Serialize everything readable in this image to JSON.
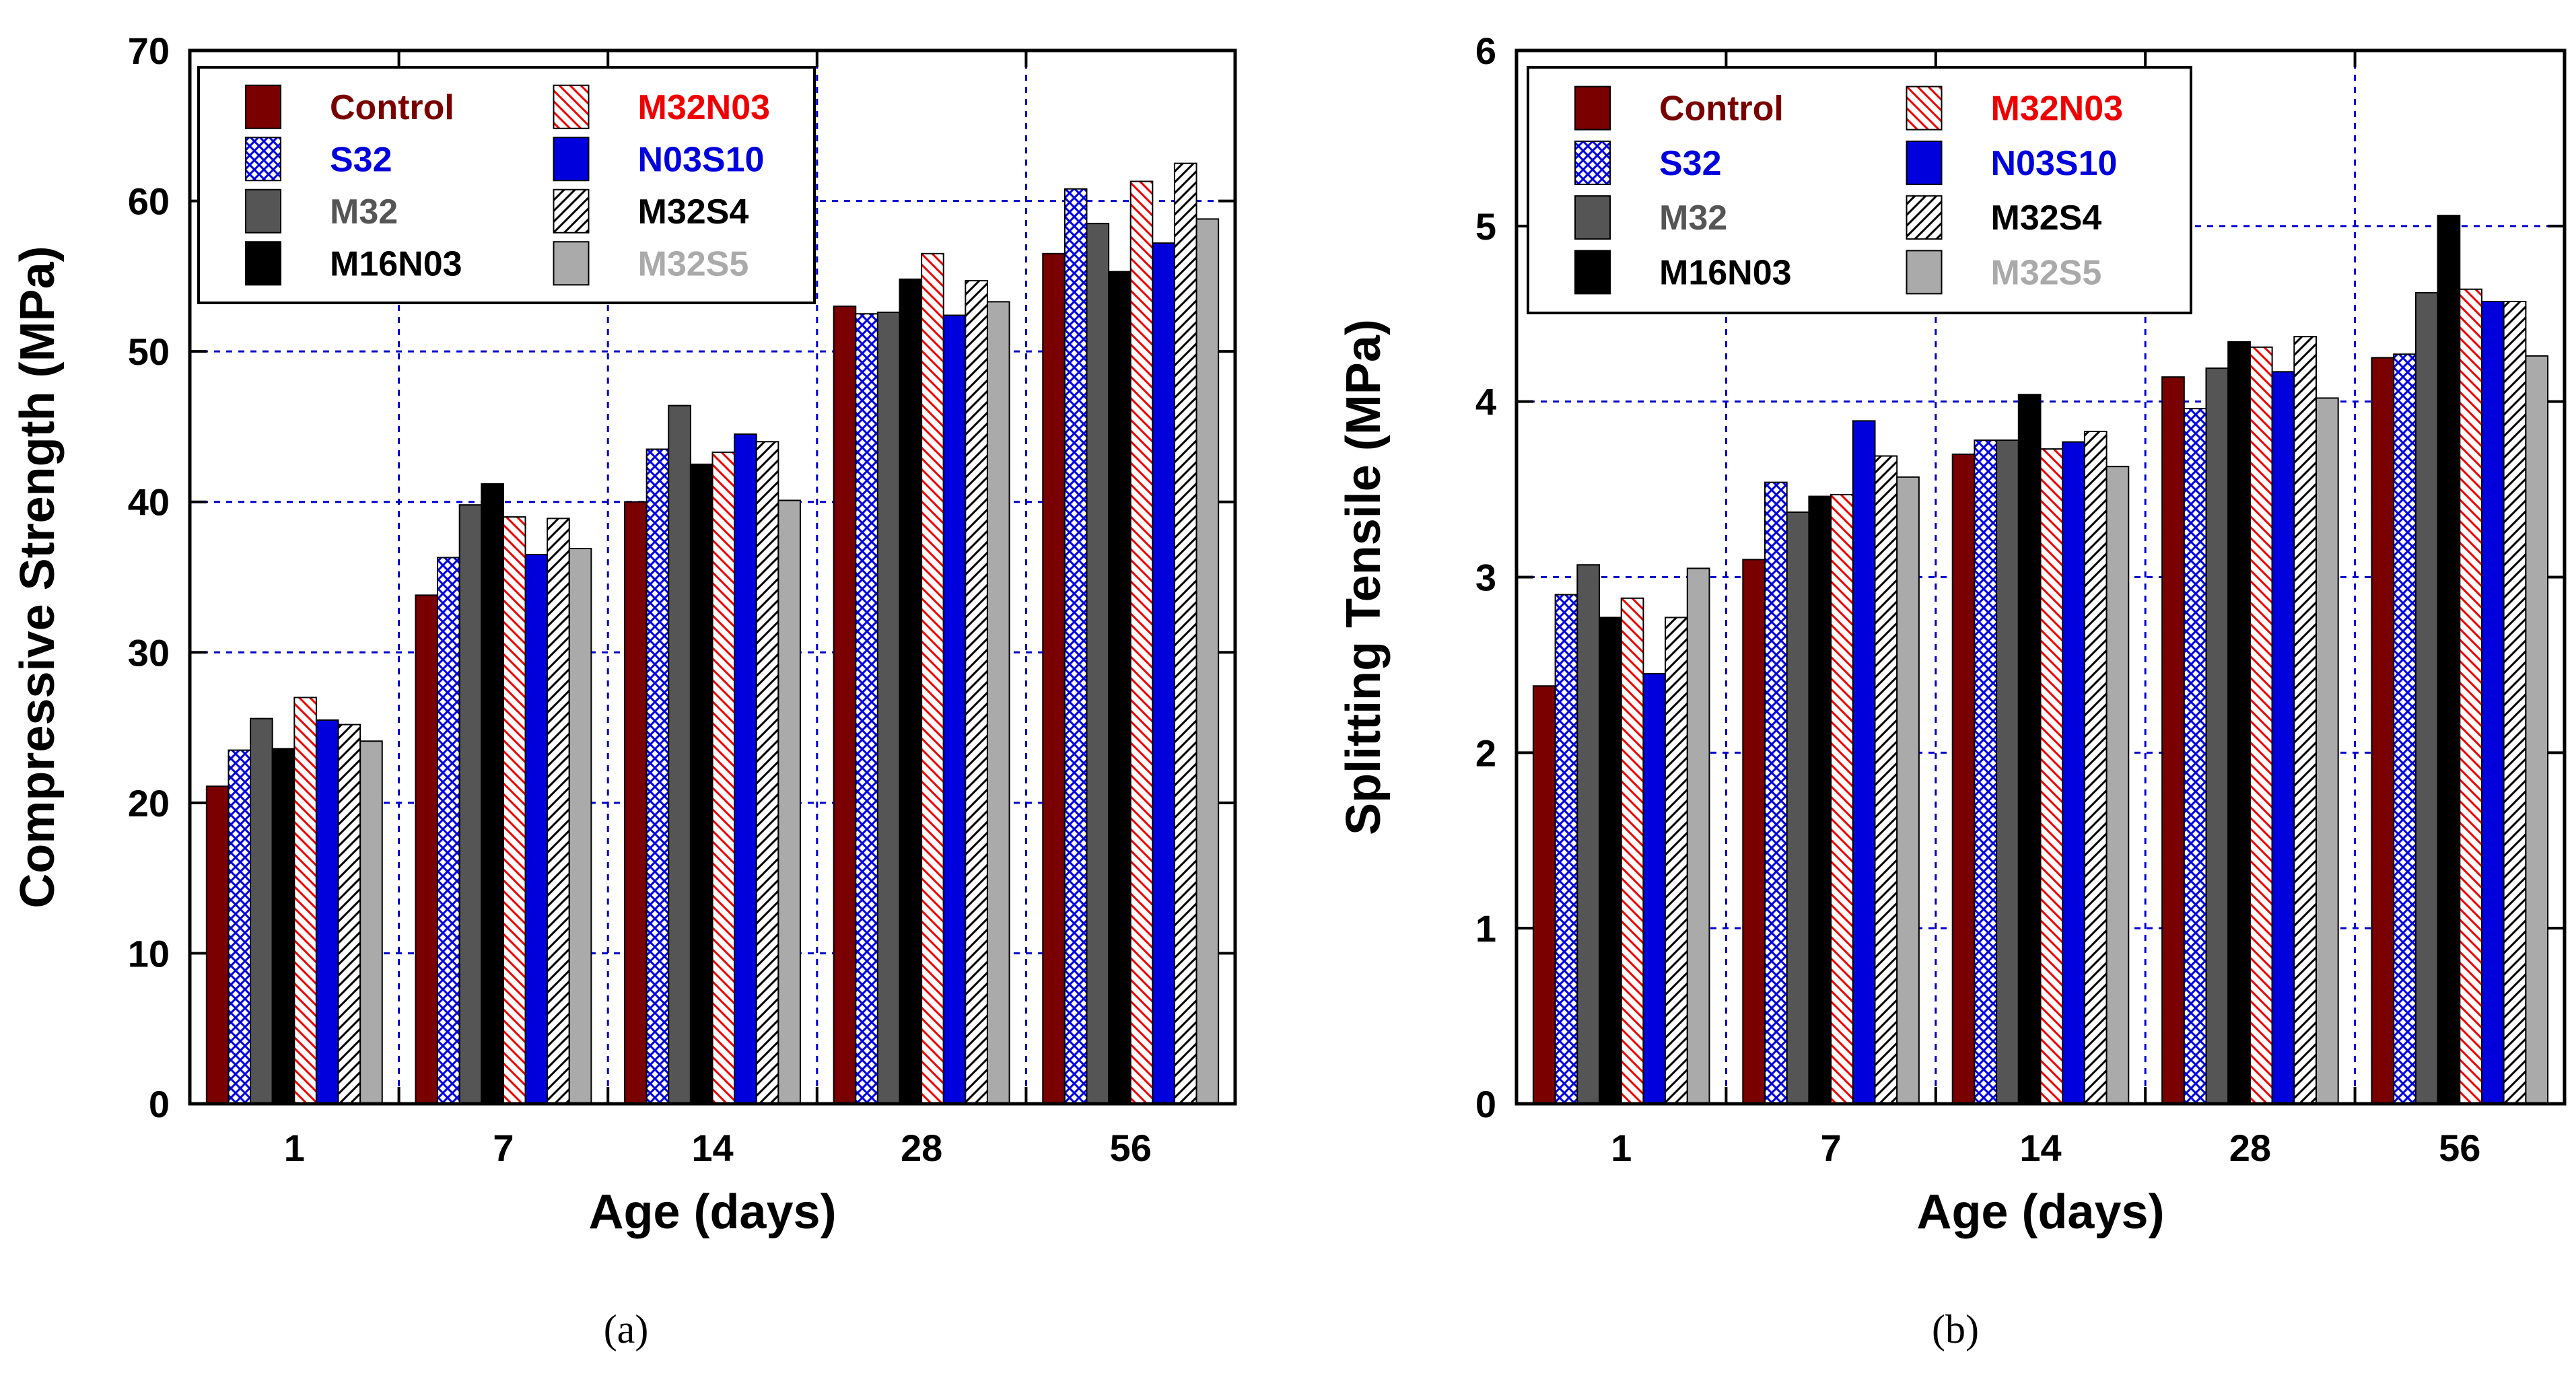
{
  "chart_data": [
    {
      "type": "bar",
      "panel_label": "(a)",
      "xlabel": "Age (days)",
      "ylabel": "Compressive Strength (MPa)",
      "ylim": [
        0,
        70
      ],
      "yticks": [
        0,
        10,
        20,
        30,
        40,
        50,
        60,
        70
      ],
      "grid": true,
      "legend_position": "top-left",
      "categories": [
        "1",
        "7",
        "14",
        "28",
        "56"
      ],
      "series": [
        {
          "name": "Control",
          "values": [
            21.1,
            33.8,
            40.0,
            53.0,
            56.5
          ]
        },
        {
          "name": "S32",
          "values": [
            23.5,
            36.3,
            43.5,
            52.5,
            60.8
          ]
        },
        {
          "name": "M32",
          "values": [
            25.6,
            39.8,
            46.4,
            52.6,
            58.5
          ]
        },
        {
          "name": "M16N03",
          "values": [
            23.6,
            41.2,
            42.5,
            54.8,
            55.3
          ]
        },
        {
          "name": "M32N03",
          "values": [
            27.0,
            39.0,
            43.3,
            56.5,
            61.3
          ]
        },
        {
          "name": "N03S10",
          "values": [
            25.5,
            36.5,
            44.5,
            52.4,
            57.2
          ]
        },
        {
          "name": "M32S4",
          "values": [
            25.2,
            38.9,
            44.0,
            54.7,
            62.5
          ]
        },
        {
          "name": "M32S5",
          "values": [
            24.1,
            36.9,
            40.1,
            53.3,
            58.8
          ]
        }
      ]
    },
    {
      "type": "bar",
      "panel_label": "(b)",
      "xlabel": "Age (days)",
      "ylabel": "Splitting Tensile (MPa)",
      "ylim": [
        0,
        6
      ],
      "yticks": [
        0,
        1,
        2,
        3,
        4,
        5,
        6
      ],
      "grid": true,
      "legend_position": "top-left",
      "categories": [
        "1",
        "7",
        "14",
        "28",
        "56"
      ],
      "series": [
        {
          "name": "Control",
          "values": [
            2.38,
            3.1,
            3.7,
            4.14,
            4.25
          ]
        },
        {
          "name": "S32",
          "values": [
            2.9,
            3.54,
            3.78,
            3.96,
            4.27
          ]
        },
        {
          "name": "M32",
          "values": [
            3.07,
            3.37,
            3.78,
            4.19,
            4.62
          ]
        },
        {
          "name": "M16N03",
          "values": [
            2.77,
            3.46,
            4.04,
            4.34,
            5.06
          ]
        },
        {
          "name": "M32N03",
          "values": [
            2.88,
            3.47,
            3.73,
            4.31,
            4.64
          ]
        },
        {
          "name": "N03S10",
          "values": [
            2.45,
            3.89,
            3.77,
            4.17,
            4.57
          ]
        },
        {
          "name": "M32S4",
          "values": [
            2.77,
            3.69,
            3.83,
            4.37,
            4.57
          ]
        },
        {
          "name": "M32S5",
          "values": [
            3.05,
            3.57,
            3.63,
            4.02,
            4.26
          ]
        }
      ]
    }
  ],
  "series_styles": [
    {
      "name": "Control",
      "fill": "#7a0000",
      "pattern": "solid",
      "label_color": "#7a0000"
    },
    {
      "name": "S32",
      "fill": "#0000dd",
      "pattern": "crosshatch",
      "label_color": "#0000dd"
    },
    {
      "name": "M32",
      "fill": "#555555",
      "pattern": "solid",
      "label_color": "#555555"
    },
    {
      "name": "M16N03",
      "fill": "#000000",
      "pattern": "solid",
      "label_color": "#000000"
    },
    {
      "name": "M32N03",
      "fill": "#ee0000",
      "pattern": "hatch",
      "label_color": "#ee0000"
    },
    {
      "name": "N03S10",
      "fill": "#0000dd",
      "pattern": "solid",
      "label_color": "#0000dd"
    },
    {
      "name": "M32S4",
      "fill": "#000000",
      "pattern": "hatch",
      "label_color": "#000000"
    },
    {
      "name": "M32S5",
      "fill": "#aaaaaa",
      "pattern": "solid",
      "label_color": "#aaaaaa"
    }
  ],
  "colors": {
    "grid": "#0000cc",
    "axis": "#000000",
    "background": "#ffffff"
  }
}
